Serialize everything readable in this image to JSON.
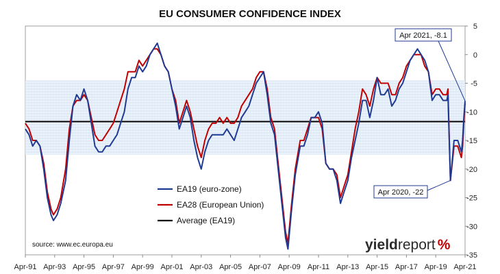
{
  "chart_data": {
    "type": "line",
    "title": "EU CONSUMER CONFIDENCE INDEX",
    "xlabel": "",
    "ylabel": "",
    "ylim": [
      -35,
      5
    ],
    "y_ticks": [
      "5",
      "0",
      "-5",
      "-10",
      "-15",
      "-20",
      "-25",
      "-30",
      "-35"
    ],
    "x_ticks": [
      "Apr-91",
      "Apr-93",
      "Apr-95",
      "Apr-97",
      "Apr-99",
      "Apr-01",
      "Apr-03",
      "Apr-05",
      "Apr-07",
      "Apr-09",
      "Apr-11",
      "Apr-13",
      "Apr-15",
      "Apr-17",
      "Apr-19",
      "Apr-21"
    ],
    "x_range": [
      "1991-04",
      "2021-04"
    ],
    "shaded_band": [
      -17.5,
      -4.5
    ],
    "series": [
      {
        "name": "EA19 (euro-zone)",
        "color": "#1f3a93",
        "points": [
          [
            "1991-04",
            -13
          ],
          [
            "1991-07",
            -14
          ],
          [
            "1991-10",
            -16
          ],
          [
            "1992-01",
            -15
          ],
          [
            "1992-04",
            -16
          ],
          [
            "1992-07",
            -20
          ],
          [
            "1992-10",
            -25
          ],
          [
            "1993-01",
            -28
          ],
          [
            "1993-03",
            -29
          ],
          [
            "1993-06",
            -28
          ],
          [
            "1993-09",
            -26
          ],
          [
            "1994-01",
            -22
          ],
          [
            "1994-04",
            -15
          ],
          [
            "1994-07",
            -9
          ],
          [
            "1994-10",
            -7
          ],
          [
            "1995-01",
            -8
          ],
          [
            "1995-04",
            -6
          ],
          [
            "1995-07",
            -8
          ],
          [
            "1995-10",
            -12
          ],
          [
            "1996-01",
            -16
          ],
          [
            "1996-04",
            -17
          ],
          [
            "1996-07",
            -17
          ],
          [
            "1996-10",
            -16
          ],
          [
            "1997-01",
            -16
          ],
          [
            "1997-04",
            -15
          ],
          [
            "1997-07",
            -14
          ],
          [
            "1997-10",
            -12
          ],
          [
            "1998-01",
            -10
          ],
          [
            "1998-04",
            -6
          ],
          [
            "1998-07",
            -4
          ],
          [
            "1998-10",
            -4
          ],
          [
            "1999-01",
            -2
          ],
          [
            "1999-04",
            -3
          ],
          [
            "1999-07",
            -2
          ],
          [
            "1999-10",
            0
          ],
          [
            "2000-01",
            1
          ],
          [
            "2000-04",
            2
          ],
          [
            "2000-07",
            0
          ],
          [
            "2000-10",
            -2
          ],
          [
            "2001-01",
            -3
          ],
          [
            "2001-04",
            -6
          ],
          [
            "2001-07",
            -9
          ],
          [
            "2001-10",
            -13
          ],
          [
            "2002-01",
            -11
          ],
          [
            "2002-04",
            -9
          ],
          [
            "2002-07",
            -11
          ],
          [
            "2002-10",
            -15
          ],
          [
            "2003-01",
            -18
          ],
          [
            "2003-04",
            -20
          ],
          [
            "2003-07",
            -17
          ],
          [
            "2003-10",
            -15
          ],
          [
            "2004-01",
            -14
          ],
          [
            "2004-04",
            -14
          ],
          [
            "2004-07",
            -14
          ],
          [
            "2004-10",
            -14
          ],
          [
            "2005-01",
            -13
          ],
          [
            "2005-04",
            -14
          ],
          [
            "2005-07",
            -15
          ],
          [
            "2005-10",
            -13
          ],
          [
            "2006-01",
            -11
          ],
          [
            "2006-04",
            -10
          ],
          [
            "2006-07",
            -9
          ],
          [
            "2006-10",
            -7
          ],
          [
            "2007-01",
            -5
          ],
          [
            "2007-04",
            -4
          ],
          [
            "2007-07",
            -3
          ],
          [
            "2007-10",
            -7
          ],
          [
            "2008-01",
            -12
          ],
          [
            "2008-04",
            -14
          ],
          [
            "2008-07",
            -20
          ],
          [
            "2008-10",
            -26
          ],
          [
            "2009-01",
            -32
          ],
          [
            "2009-03",
            -34
          ],
          [
            "2009-06",
            -27
          ],
          [
            "2009-09",
            -21
          ],
          [
            "2010-01",
            -16
          ],
          [
            "2010-04",
            -16
          ],
          [
            "2010-07",
            -14
          ],
          [
            "2010-10",
            -11
          ],
          [
            "2011-01",
            -11
          ],
          [
            "2011-04",
            -10
          ],
          [
            "2011-07",
            -12
          ],
          [
            "2011-10",
            -19
          ],
          [
            "2012-01",
            -20
          ],
          [
            "2012-04",
            -20
          ],
          [
            "2012-07",
            -22
          ],
          [
            "2012-10",
            -26
          ],
          [
            "2013-01",
            -24
          ],
          [
            "2013-04",
            -22
          ],
          [
            "2013-07",
            -18
          ],
          [
            "2013-10",
            -15
          ],
          [
            "2014-01",
            -12
          ],
          [
            "2014-04",
            -8
          ],
          [
            "2014-07",
            -8
          ],
          [
            "2014-10",
            -11
          ],
          [
            "2015-01",
            -8
          ],
          [
            "2015-04",
            -4
          ],
          [
            "2015-07",
            -7
          ],
          [
            "2015-10",
            -7
          ],
          [
            "2016-01",
            -6
          ],
          [
            "2016-04",
            -9
          ],
          [
            "2016-07",
            -8
          ],
          [
            "2016-10",
            -6
          ],
          [
            "2017-01",
            -5
          ],
          [
            "2017-04",
            -3
          ],
          [
            "2017-07",
            -1
          ],
          [
            "2017-10",
            0
          ],
          [
            "2018-01",
            1
          ],
          [
            "2018-04",
            0
          ],
          [
            "2018-07",
            -1
          ],
          [
            "2018-10",
            -3
          ],
          [
            "2019-01",
            -8
          ],
          [
            "2019-04",
            -7
          ],
          [
            "2019-07",
            -7
          ],
          [
            "2019-10",
            -8
          ],
          [
            "2020-01",
            -8
          ],
          [
            "2020-02",
            -7
          ],
          [
            "2020-04",
            -22
          ],
          [
            "2020-07",
            -15
          ],
          [
            "2020-10",
            -15
          ],
          [
            "2021-01",
            -17
          ],
          [
            "2021-02",
            -15
          ],
          [
            "2021-03",
            -11
          ],
          [
            "2021-04",
            -8.1
          ]
        ]
      },
      {
        "name": "EA28 (European Union)",
        "color": "#c00000",
        "points": [
          [
            "1991-04",
            -12
          ],
          [
            "1991-07",
            -13
          ],
          [
            "1991-10",
            -15
          ],
          [
            "1992-01",
            -15
          ],
          [
            "1992-04",
            -16
          ],
          [
            "1992-07",
            -19
          ],
          [
            "1992-10",
            -24
          ],
          [
            "1993-01",
            -27
          ],
          [
            "1993-03",
            -28
          ],
          [
            "1993-06",
            -27
          ],
          [
            "1993-09",
            -25
          ],
          [
            "1994-01",
            -20
          ],
          [
            "1994-04",
            -13
          ],
          [
            "1994-07",
            -9
          ],
          [
            "1994-10",
            -8
          ],
          [
            "1995-01",
            -8
          ],
          [
            "1995-04",
            -7
          ],
          [
            "1995-07",
            -8
          ],
          [
            "1995-10",
            -11
          ],
          [
            "1996-01",
            -14
          ],
          [
            "1996-04",
            -15
          ],
          [
            "1996-07",
            -15
          ],
          [
            "1996-10",
            -14
          ],
          [
            "1997-01",
            -13
          ],
          [
            "1997-04",
            -12
          ],
          [
            "1997-07",
            -10
          ],
          [
            "1997-10",
            -8
          ],
          [
            "1998-01",
            -6
          ],
          [
            "1998-04",
            -3
          ],
          [
            "1998-07",
            -3
          ],
          [
            "1998-10",
            -3
          ],
          [
            "1999-01",
            -1
          ],
          [
            "1999-04",
            -2
          ],
          [
            "1999-07",
            -1
          ],
          [
            "1999-10",
            0
          ],
          [
            "2000-01",
            1
          ],
          [
            "2000-04",
            1
          ],
          [
            "2000-07",
            0
          ],
          [
            "2000-10",
            -2
          ],
          [
            "2001-01",
            -3
          ],
          [
            "2001-04",
            -6
          ],
          [
            "2001-07",
            -8
          ],
          [
            "2001-10",
            -12
          ],
          [
            "2002-01",
            -10
          ],
          [
            "2002-04",
            -8
          ],
          [
            "2002-07",
            -10
          ],
          [
            "2002-10",
            -13
          ],
          [
            "2003-01",
            -16
          ],
          [
            "2003-04",
            -18
          ],
          [
            "2003-07",
            -15
          ],
          [
            "2003-10",
            -13
          ],
          [
            "2004-01",
            -12
          ],
          [
            "2004-04",
            -12
          ],
          [
            "2004-07",
            -11
          ],
          [
            "2004-10",
            -12
          ],
          [
            "2005-01",
            -11
          ],
          [
            "2005-04",
            -12
          ],
          [
            "2005-07",
            -12
          ],
          [
            "2005-10",
            -11
          ],
          [
            "2006-01",
            -9
          ],
          [
            "2006-04",
            -8
          ],
          [
            "2006-07",
            -7
          ],
          [
            "2006-10",
            -6
          ],
          [
            "2007-01",
            -4
          ],
          [
            "2007-04",
            -3
          ],
          [
            "2007-07",
            -3
          ],
          [
            "2007-10",
            -6
          ],
          [
            "2008-01",
            -11
          ],
          [
            "2008-04",
            -13
          ],
          [
            "2008-07",
            -19
          ],
          [
            "2008-10",
            -25
          ],
          [
            "2009-01",
            -31
          ],
          [
            "2009-03",
            -33
          ],
          [
            "2009-06",
            -26
          ],
          [
            "2009-09",
            -20
          ],
          [
            "2010-01",
            -15
          ],
          [
            "2010-04",
            -15
          ],
          [
            "2010-07",
            -13
          ],
          [
            "2010-10",
            -11
          ],
          [
            "2011-01",
            -11
          ],
          [
            "2011-04",
            -11
          ],
          [
            "2011-07",
            -13
          ],
          [
            "2011-10",
            -19
          ],
          [
            "2012-01",
            -20
          ],
          [
            "2012-04",
            -20
          ],
          [
            "2012-07",
            -21
          ],
          [
            "2012-10",
            -25
          ],
          [
            "2013-01",
            -23
          ],
          [
            "2013-04",
            -21
          ],
          [
            "2013-07",
            -17
          ],
          [
            "2013-10",
            -13
          ],
          [
            "2014-01",
            -10
          ],
          [
            "2014-04",
            -6
          ],
          [
            "2014-07",
            -7
          ],
          [
            "2014-10",
            -9
          ],
          [
            "2015-01",
            -6
          ],
          [
            "2015-04",
            -4
          ],
          [
            "2015-07",
            -5
          ],
          [
            "2015-10",
            -5
          ],
          [
            "2016-01",
            -5
          ],
          [
            "2016-04",
            -7
          ],
          [
            "2016-07",
            -7
          ],
          [
            "2016-10",
            -5
          ],
          [
            "2017-01",
            -4
          ],
          [
            "2017-04",
            -2
          ],
          [
            "2017-07",
            -1
          ],
          [
            "2017-10",
            0
          ],
          [
            "2018-01",
            0
          ],
          [
            "2018-04",
            0
          ],
          [
            "2018-07",
            -2
          ],
          [
            "2018-10",
            -3
          ],
          [
            "2019-01",
            -7
          ],
          [
            "2019-04",
            -6
          ],
          [
            "2019-07",
            -6
          ],
          [
            "2019-10",
            -7
          ],
          [
            "2020-01",
            -7
          ],
          [
            "2020-02",
            -6
          ],
          [
            "2020-04",
            -22
          ],
          [
            "2020-07",
            -16
          ],
          [
            "2020-10",
            -16
          ],
          [
            "2021-01",
            -18
          ],
          [
            "2021-02",
            -16
          ],
          [
            "2021-03",
            -12
          ],
          [
            "2021-04",
            -8.5
          ]
        ]
      },
      {
        "name": "Average (EA19)",
        "color": "#000000",
        "constant": -11.7
      }
    ],
    "annotations": [
      {
        "text": "Apr 2021, -8.1",
        "x": "2021-04",
        "y": -8.1
      },
      {
        "text": "Apr 2020, -22",
        "x": "2020-04",
        "y": -22
      }
    ],
    "grid": false,
    "legend_position": "bottom-center"
  },
  "source": "source: www.ec.europa.eu",
  "logo": {
    "word_a": "yield",
    "word_b": "report",
    "pct": "%"
  }
}
